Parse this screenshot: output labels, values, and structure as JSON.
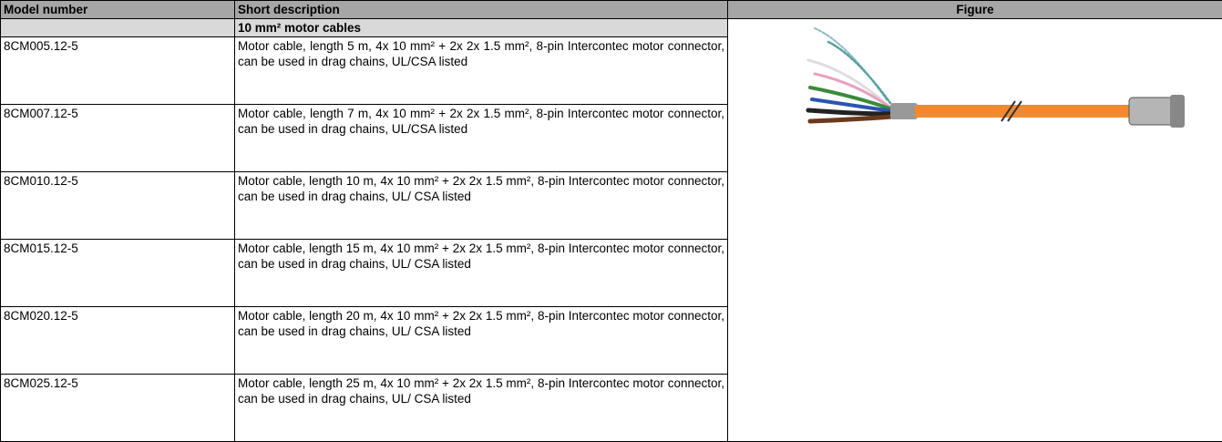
{
  "table": {
    "header": [
      "Model number",
      "Short description",
      "Figure"
    ],
    "group": "10 mm² motor cables",
    "rows": [
      [
        "8CM005.12-5",
        "Motor cable, length 5 m, 4x 10 mm² + 2x 2x 1.5 mm², 8-pin Intercontec motor connector, can be used in drag chains, UL/CSA listed"
      ],
      [
        "8CM007.12-5",
        "Motor cable, length 7 m, 4x 10 mm² + 2x 2x 1.5 mm², 8-pin Intercontec motor connector, can be used in drag chains, UL/CSA listed"
      ],
      [
        "8CM010.12-5",
        "Motor cable, length 10 m, 4x 10 mm² + 2x 2x 1.5 mm², 8-pin Intercontec motor connector, can be used in drag chains, UL/ CSA listed"
      ],
      [
        "8CM015.12-5",
        "Motor cable, length 15 m, 4x 10 mm² + 2x 2x 1.5 mm², 8-pin Intercontec motor connector, can be used in drag chains, UL/ CSA listed"
      ],
      [
        "8CM020.12-5",
        "Motor cable, length 20 m, 4x 10 mm² + 2x 2x 1.5 mm², 8-pin Intercontec motor connector, can be used in drag chains, UL/ CSA listed"
      ],
      [
        "8CM025.12-5",
        "Motor cable, length 25 m, 4x 10 mm² + 2x 2x 1.5 mm², 8-pin Intercontec motor connector, can be used in drag chains, UL/ CSA listed"
      ]
    ]
  }
}
